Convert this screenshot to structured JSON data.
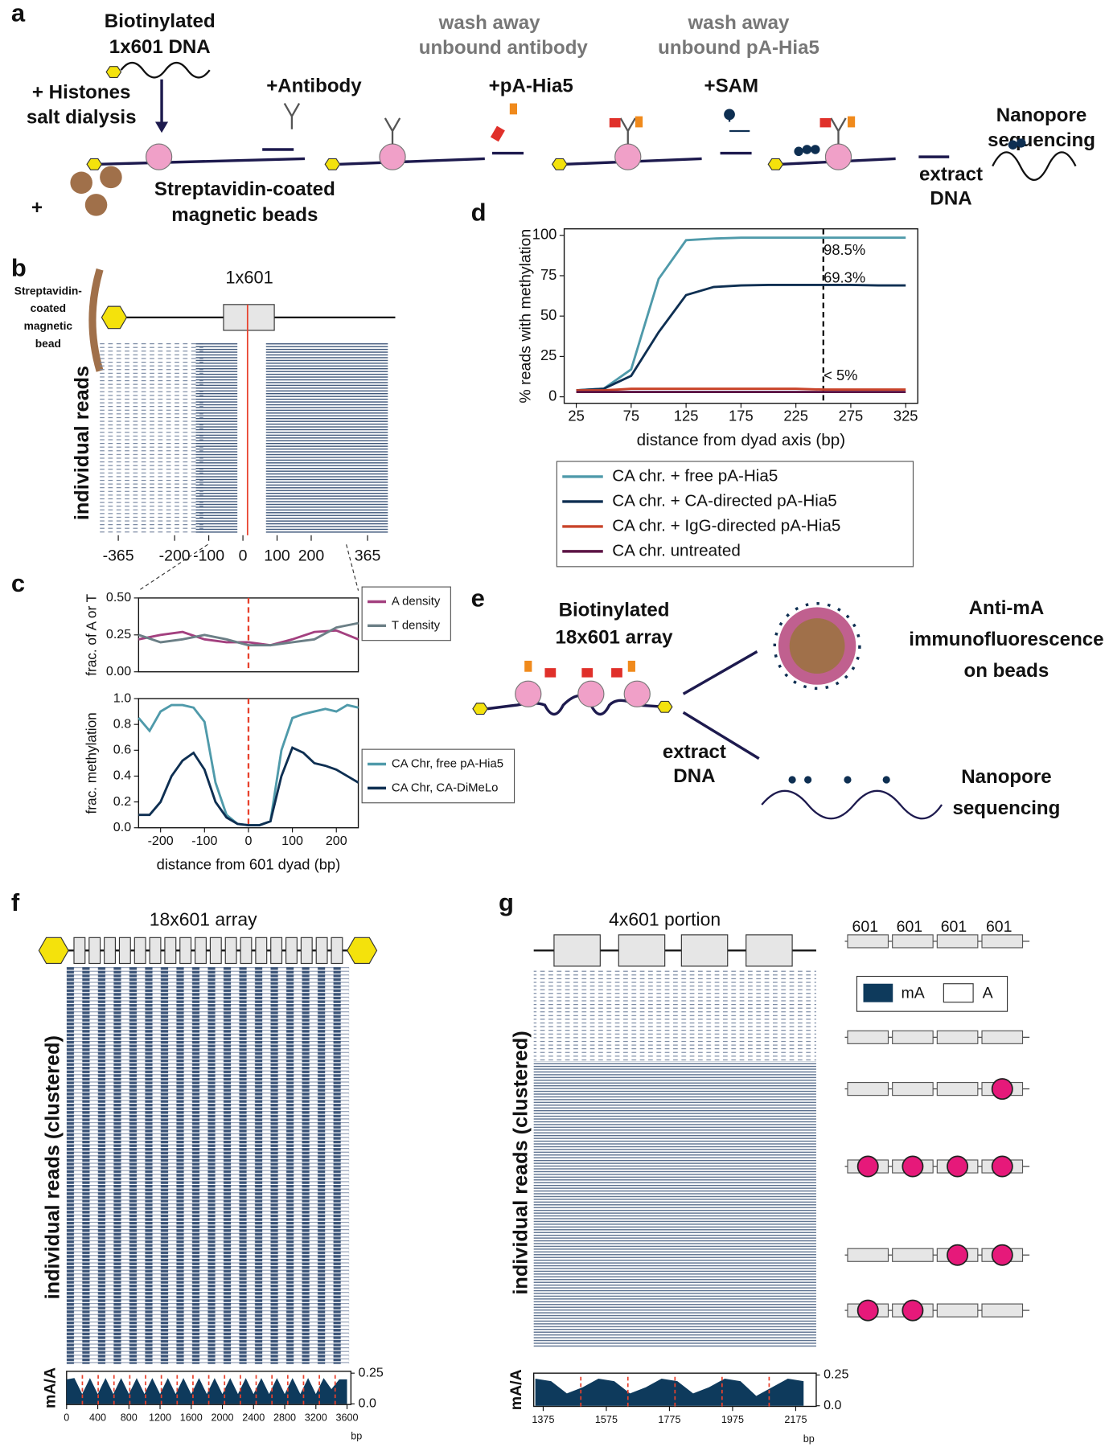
{
  "panels": {
    "a": {
      "letter": "a",
      "biotin_dna": [
        "Biotinylated",
        "1x601 DNA"
      ],
      "histones": [
        "+ Histones",
        "salt dialysis"
      ],
      "antibody": "+Antibody",
      "wash_antibody": [
        "wash away",
        "unbound antibody"
      ],
      "pa_hia5": "+pA-Hia5",
      "wash_pa": [
        "wash away",
        "unbound pA-Hia5"
      ],
      "sam": "+SAM",
      "nanopore": [
        "Nanopore",
        "sequencing"
      ],
      "extract": [
        "extract",
        "DNA"
      ],
      "plus": "+",
      "beads": [
        "Streptavidin-coated",
        "magnetic beads"
      ]
    },
    "b": {
      "letter": "b",
      "bead_label": [
        "Streptavidin-",
        "coated",
        "magnetic",
        "bead"
      ],
      "construct": "1x601",
      "ylabel": "individual reads",
      "xlim": [
        -365,
        365
      ],
      "xticks": [
        -365,
        -200,
        -100,
        0,
        100,
        200,
        365
      ]
    },
    "c": {
      "letter": "c"
    },
    "d": {
      "letter": "d"
    },
    "e": {
      "letter": "e",
      "array": [
        "Biotinylated",
        "18x601 array"
      ],
      "immuno": [
        "Anti-mA",
        "immunofluorescence",
        "on beads"
      ],
      "extract": [
        "extract",
        "DNA"
      ],
      "nanopore": [
        "Nanopore",
        "sequencing"
      ]
    },
    "f": {
      "letter": "f",
      "title": "18x601 array",
      "ylabel": "individual reads (clustered)"
    },
    "g": {
      "letter": "g",
      "title": "4x601 portion",
      "labels": [
        "601",
        "601",
        "601",
        "601"
      ],
      "legend": [
        "mA",
        "A"
      ],
      "ylabel": "individual reads (clustered)"
    }
  },
  "chart_data": [
    {
      "type": "line",
      "ylabel": "frac. of A or T",
      "x": [
        -250,
        -200,
        -150,
        -100,
        -50,
        0,
        50,
        100,
        150,
        200,
        250
      ],
      "series": [
        {
          "name": "A density",
          "color": "#a3407f",
          "values": [
            0.22,
            0.25,
            0.27,
            0.22,
            0.2,
            0.2,
            0.18,
            0.22,
            0.27,
            0.28,
            0.22
          ]
        },
        {
          "name": "T density",
          "color": "#6b7f86",
          "values": [
            0.25,
            0.2,
            0.22,
            0.25,
            0.22,
            0.18,
            0.18,
            0.2,
            0.22,
            0.3,
            0.33
          ]
        }
      ],
      "xlim": [
        -250,
        250
      ],
      "ylim": [
        0,
        0.5
      ],
      "yticks": [
        {
          "value": 0,
          "label": "0.00"
        },
        0.25,
        {
          "value": 0.5,
          "label": "0.50"
        }
      ],
      "vline": 0,
      "vline_color": "#e8412c"
    },
    {
      "type": "line",
      "xlabel": "distance from 601 dyad (bp)",
      "ylabel": "frac. methylation",
      "x": [
        -250,
        -225,
        -200,
        -175,
        -150,
        -125,
        -100,
        -75,
        -50,
        -25,
        0,
        25,
        50,
        75,
        100,
        125,
        150,
        175,
        200,
        225,
        250
      ],
      "series": [
        {
          "name": "CA Chr, free pA-Hia5",
          "color": "#4f9aaa",
          "values": [
            0.85,
            0.75,
            0.9,
            0.95,
            0.95,
            0.93,
            0.82,
            0.35,
            0.1,
            0.03,
            0.02,
            0.02,
            0.05,
            0.6,
            0.85,
            0.88,
            0.9,
            0.92,
            0.9,
            0.95,
            0.93
          ]
        },
        {
          "name": "CA Chr, CA-DiMeLo",
          "color": "#0e2f52",
          "values": [
            0.1,
            0.1,
            0.2,
            0.4,
            0.52,
            0.58,
            0.45,
            0.2,
            0.08,
            0.03,
            0.02,
            0.02,
            0.05,
            0.4,
            0.62,
            0.58,
            0.5,
            0.48,
            0.45,
            0.4,
            0.35
          ]
        }
      ],
      "xlim": [
        -250,
        250
      ],
      "xticks": [
        -200,
        -100,
        0,
        100,
        200
      ],
      "ylim": [
        0,
        1
      ],
      "yticks": [
        {
          "value": 0,
          "label": "0.0"
        },
        0.2,
        0.4,
        0.6,
        0.8,
        {
          "value": 1,
          "label": "1.0"
        }
      ],
      "vline": 0,
      "vline_color": "#e8412c"
    },
    {
      "type": "line",
      "xlabel": "distance from dyad axis (bp)",
      "ylabel": "% reads with methylation",
      "x": [
        25,
        50,
        75,
        100,
        125,
        150,
        175,
        200,
        225,
        250,
        275,
        300,
        325
      ],
      "series": [
        {
          "name": "CA chr. + free pA-Hia5",
          "color": "#4f9aaa",
          "values": [
            4,
            5,
            17,
            73,
            97,
            98,
            98.5,
            98.5,
            98.5,
            98.5,
            98.5,
            98.5,
            98.5
          ]
        },
        {
          "name": "CA chr. + CA-directed pA-Hia5",
          "color": "#0e2f52",
          "values": [
            4,
            5,
            13,
            40,
            63,
            68,
            69,
            69.3,
            69.3,
            69.3,
            69.3,
            69,
            69
          ]
        },
        {
          "name": "CA chr. + IgG-directed pA-Hia5",
          "color": "#c9442a",
          "values": [
            4,
            4,
            5,
            5,
            5,
            5,
            5,
            5,
            5,
            4.5,
            4.5,
            4.5,
            4.5
          ]
        },
        {
          "name": "CA chr. untreated",
          "color": "#5c1445",
          "values": [
            3,
            3,
            3,
            3,
            3,
            3,
            3,
            3,
            3,
            3,
            3,
            3,
            3
          ]
        }
      ],
      "xlim": [
        14,
        336
      ],
      "xticks": [
        25,
        75,
        125,
        175,
        225,
        275,
        325
      ],
      "ylim": [
        -4,
        104
      ],
      "yticks": [
        0,
        25,
        50,
        75,
        100
      ],
      "vline": 250,
      "vline_color": "#111111",
      "annotations": [
        "98.5%",
        "69.3%",
        "< 5%"
      ]
    },
    {
      "type": "area",
      "xlabel": "bp",
      "ylabel": "mA/A",
      "color": "#0e3a5c",
      "x": [
        0,
        100,
        200,
        300,
        400,
        500,
        600,
        700,
        800,
        900,
        1000,
        1100,
        1200,
        1300,
        1400,
        1500,
        1600,
        1700,
        1800,
        1900,
        2000,
        2100,
        2200,
        2300,
        2400,
        2500,
        2600,
        2700,
        2800,
        2900,
        3000,
        3100,
        3200,
        3300,
        3400,
        3500,
        3600
      ],
      "values": [
        0.2,
        0.21,
        0.08,
        0.21,
        0.08,
        0.21,
        0.08,
        0.21,
        0.08,
        0.21,
        0.08,
        0.21,
        0.08,
        0.21,
        0.08,
        0.21,
        0.08,
        0.21,
        0.08,
        0.21,
        0.08,
        0.21,
        0.08,
        0.21,
        0.08,
        0.21,
        0.08,
        0.21,
        0.08,
        0.21,
        0.08,
        0.21,
        0.08,
        0.21,
        0.12,
        0.2,
        0.2
      ],
      "xlim": [
        0,
        3650
      ],
      "xticks": [
        0,
        400,
        800,
        1200,
        1600,
        2000,
        2400,
        2800,
        3200,
        3600
      ],
      "ylim": [
        -0.005,
        0.265
      ],
      "yticks": [
        {
          "value": 0,
          "label": "0.0"
        },
        0.25
      ]
    },
    {
      "type": "area",
      "xlabel": "bp",
      "ylabel": "mA/A",
      "color": "#0e3a5c",
      "x": [
        1350,
        1400,
        1450,
        1500,
        1550,
        1600,
        1650,
        1700,
        1750,
        1800,
        1850,
        1900,
        1950,
        2000,
        2050,
        2100,
        2150,
        2200
      ],
      "values": [
        0.22,
        0.2,
        0.1,
        0.15,
        0.22,
        0.2,
        0.1,
        0.15,
        0.22,
        0.2,
        0.1,
        0.15,
        0.22,
        0.2,
        0.08,
        0.15,
        0.22,
        0.2
      ],
      "xlim": [
        1345,
        2240
      ],
      "xticks": [
        1375,
        1575,
        1775,
        1975,
        2175
      ],
      "ylim": [
        -0.005,
        0.265
      ],
      "yticks": [
        {
          "value": 0,
          "label": "0.0"
        },
        0.25
      ]
    }
  ]
}
